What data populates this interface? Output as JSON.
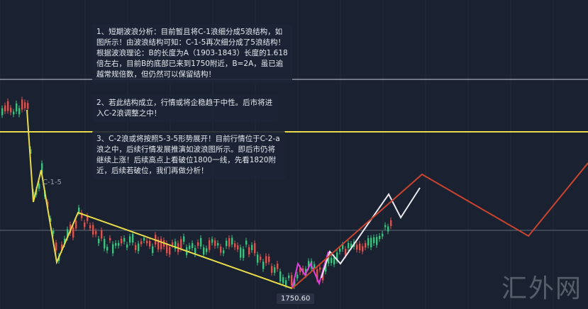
{
  "notes": {
    "n1": "1、短期波浪分析：目前暂且将C-1浪细分成5浪结构，如图所示！由波浪结构可知：C-1-5再次细分成了5浪结构！根据波浪理论：B的长度为A（1903-1843）长度的1.618倍左右，目前B的底部已来到1750附近，B=2A，虽已逾越常规倍数，但仍然可以保留结构！",
    "n2": "2、若此结构成立，行情或将企稳趋于中性。后市将进入C-2浪调整之中！",
    "n3": "3、C-2浪或将按照5-3-5形势展开！目前行情位于C-2-a浪之中，后续行情发展推演如波浪图所示。即后市仍将继续上涨！后续高点上看破位1800一线，先看1820附近，后续若破位，我们再做分析！"
  },
  "wave_label": "C-1-5",
  "low_price": "1750.60",
  "watermark": "汇外网",
  "colors": {
    "background": "#1a2130",
    "yellow": "#e8dc4a",
    "pink": "#e040e0",
    "white": "#e8e8ee",
    "red": "#c8442e",
    "up": "#d9534f",
    "down": "#3fbf7f"
  }
}
